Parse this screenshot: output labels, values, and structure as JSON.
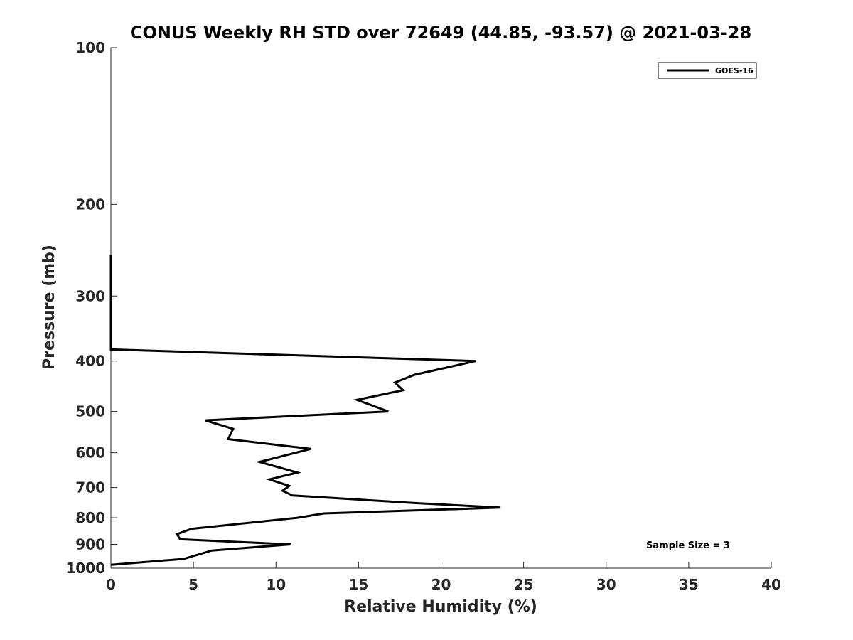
{
  "chart_data": {
    "type": "line",
    "title": "CONUS Weekly RH STD over 72649 (44.85, -93.57) @ 2021-03-28",
    "xlabel": "Relative Humidity (%)",
    "ylabel": "Pressure (mb)",
    "xlim": [
      0,
      40
    ],
    "ylim": [
      100,
      1000
    ],
    "y_scale": "log",
    "y_reversed": true,
    "x_ticks": [
      "0",
      "5",
      "10",
      "15",
      "20",
      "25",
      "30",
      "35",
      "40"
    ],
    "y_ticks": [
      "100",
      "200",
      "300",
      "400",
      "500",
      "600",
      "700",
      "800",
      "900",
      "1000"
    ],
    "grid": false,
    "legend_position": "top-right",
    "series": [
      {
        "name": "GOES-16",
        "color": "#000000",
        "points": [
          [
            0,
            250
          ],
          [
            0,
            300
          ],
          [
            0,
            350
          ],
          [
            0,
            380
          ],
          [
            22.1,
            400
          ],
          [
            18.4,
            425
          ],
          [
            17.2,
            440
          ],
          [
            17.7,
            455
          ],
          [
            14.9,
            475
          ],
          [
            16.8,
            500
          ],
          [
            5.7,
            520
          ],
          [
            7.4,
            540
          ],
          [
            7.1,
            565
          ],
          [
            12.1,
            590
          ],
          [
            9.0,
            625
          ],
          [
            11.3,
            655
          ],
          [
            9.6,
            675
          ],
          [
            10.8,
            695
          ],
          [
            10.4,
            710
          ],
          [
            11.0,
            725
          ],
          [
            18.5,
            750
          ],
          [
            23.6,
            765
          ],
          [
            12.9,
            785
          ],
          [
            11.3,
            800
          ],
          [
            4.9,
            840
          ],
          [
            4.0,
            860
          ],
          [
            4.2,
            880
          ],
          [
            10.9,
            900
          ],
          [
            6.1,
            925
          ],
          [
            4.4,
            960
          ],
          [
            0,
            985
          ]
        ]
      }
    ],
    "annotations": [
      "Sample Size = 3"
    ]
  }
}
